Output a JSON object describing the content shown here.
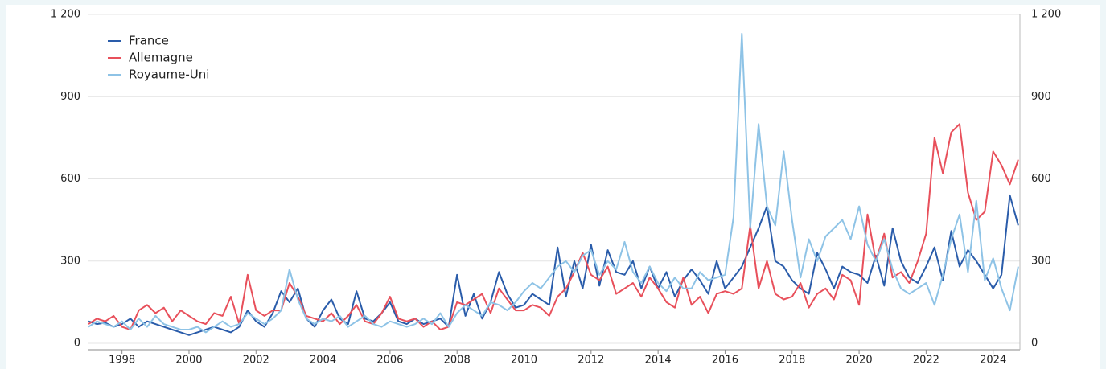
{
  "chart_data": {
    "type": "line",
    "x": [
      1997,
      1997.25,
      1997.5,
      1997.75,
      1998,
      1998.25,
      1998.5,
      1998.75,
      1999,
      1999.25,
      1999.5,
      1999.75,
      2000,
      2000.25,
      2000.5,
      2000.75,
      2001,
      2001.25,
      2001.5,
      2001.75,
      2002,
      2002.25,
      2002.5,
      2002.75,
      2003,
      2003.25,
      2003.5,
      2003.75,
      2004,
      2004.25,
      2004.5,
      2004.75,
      2005,
      2005.25,
      2005.5,
      2005.75,
      2006,
      2006.25,
      2006.5,
      2006.75,
      2007,
      2007.25,
      2007.5,
      2007.75,
      2008,
      2008.25,
      2008.5,
      2008.75,
      2009,
      2009.25,
      2009.5,
      2009.75,
      2010,
      2010.25,
      2010.5,
      2010.75,
      2011,
      2011.25,
      2011.5,
      2011.75,
      2012,
      2012.25,
      2012.5,
      2012.75,
      2013,
      2013.25,
      2013.5,
      2013.75,
      2014,
      2014.25,
      2014.5,
      2014.75,
      2015,
      2015.25,
      2015.5,
      2015.75,
      2016,
      2016.25,
      2016.5,
      2016.75,
      2017,
      2017.25,
      2017.5,
      2017.75,
      2018,
      2018.25,
      2018.5,
      2018.75,
      2019,
      2019.25,
      2019.5,
      2019.75,
      2020,
      2020.25,
      2020.5,
      2020.75,
      2021,
      2021.25,
      2021.5,
      2021.75,
      2022,
      2022.25,
      2022.5,
      2022.75,
      2023,
      2023.25,
      2023.5,
      2023.75,
      2024,
      2024.25,
      2024.5,
      2024.75
    ],
    "series": [
      {
        "name": "France",
        "color": "#2a5caa",
        "values": [
          80,
          70,
          75,
          60,
          70,
          90,
          60,
          80,
          70,
          60,
          50,
          40,
          30,
          40,
          50,
          60,
          50,
          40,
          60,
          120,
          80,
          60,
          110,
          190,
          150,
          200,
          90,
          60,
          120,
          160,
          90,
          70,
          190,
          90,
          80,
          110,
          150,
          80,
          70,
          90,
          70,
          80,
          90,
          60,
          250,
          100,
          180,
          90,
          150,
          260,
          180,
          130,
          140,
          180,
          160,
          140,
          350,
          170,
          300,
          200,
          360,
          210,
          340,
          260,
          250,
          300,
          200,
          280,
          200,
          260,
          170,
          230,
          270,
          230,
          180,
          300,
          200,
          240,
          280,
          350,
          420,
          500,
          300,
          280,
          230,
          200,
          180,
          330,
          270,
          200,
          280,
          260,
          250,
          220,
          320,
          210,
          420,
          300,
          240,
          220,
          280,
          350,
          230,
          410,
          280,
          340,
          300,
          250,
          200,
          250,
          540,
          430
        ]
      },
      {
        "name": "Allemagne",
        "color": "#e8505b",
        "values": [
          70,
          90,
          80,
          100,
          60,
          50,
          120,
          140,
          110,
          130,
          80,
          120,
          100,
          80,
          70,
          110,
          100,
          170,
          70,
          250,
          120,
          100,
          120,
          120,
          220,
          170,
          100,
          90,
          80,
          110,
          70,
          100,
          140,
          80,
          70,
          110,
          170,
          90,
          80,
          90,
          60,
          80,
          50,
          60,
          150,
          140,
          160,
          180,
          110,
          200,
          160,
          120,
          120,
          140,
          130,
          100,
          170,
          200,
          260,
          330,
          250,
          230,
          280,
          180,
          200,
          220,
          170,
          240,
          200,
          150,
          130,
          240,
          140,
          170,
          110,
          180,
          190,
          180,
          200,
          430,
          200,
          300,
          180,
          160,
          170,
          220,
          130,
          180,
          200,
          160,
          250,
          230,
          140,
          470,
          300,
          400,
          240,
          260,
          220,
          300,
          400,
          750,
          620,
          770,
          800,
          550,
          450,
          480,
          700,
          650,
          580,
          670
        ]
      },
      {
        "name": "Royaume-Uni",
        "color": "#8ec3e6",
        "values": [
          60,
          80,
          70,
          60,
          80,
          50,
          90,
          60,
          100,
          70,
          60,
          50,
          50,
          60,
          40,
          60,
          80,
          60,
          70,
          110,
          90,
          70,
          90,
          120,
          270,
          160,
          90,
          70,
          90,
          80,
          100,
          60,
          80,
          100,
          70,
          60,
          80,
          70,
          60,
          70,
          90,
          70,
          110,
          60,
          110,
          140,
          120,
          100,
          150,
          140,
          120,
          150,
          190,
          220,
          200,
          240,
          280,
          300,
          260,
          320,
          340,
          250,
          300,
          270,
          370,
          260,
          220,
          280,
          220,
          190,
          240,
          200,
          200,
          260,
          230,
          240,
          250,
          460,
          1130,
          420,
          800,
          500,
          430,
          700,
          450,
          240,
          380,
          300,
          390,
          420,
          450,
          380,
          500,
          360,
          300,
          380,
          270,
          200,
          180,
          200,
          220,
          140,
          250,
          380,
          470,
          260,
          520,
          230,
          310,
          200,
          120,
          280
        ]
      }
    ],
    "xlim": [
      1997,
      2024.8
    ],
    "xticks": [
      1998,
      2000,
      2002,
      2004,
      2006,
      2008,
      2010,
      2012,
      2014,
      2016,
      2018,
      2020,
      2022,
      2024
    ],
    "ylim": [
      0,
      1200
    ],
    "yticks": [
      0,
      300,
      600,
      900,
      {
        "value": 1200,
        "label": "1 200"
      }
    ],
    "y2lim": [
      0,
      1200
    ],
    "y2ticks": [
      0,
      300,
      600,
      900,
      {
        "value": 1200,
        "label": "1 200"
      }
    ],
    "grid": true,
    "legend": "top-left"
  }
}
